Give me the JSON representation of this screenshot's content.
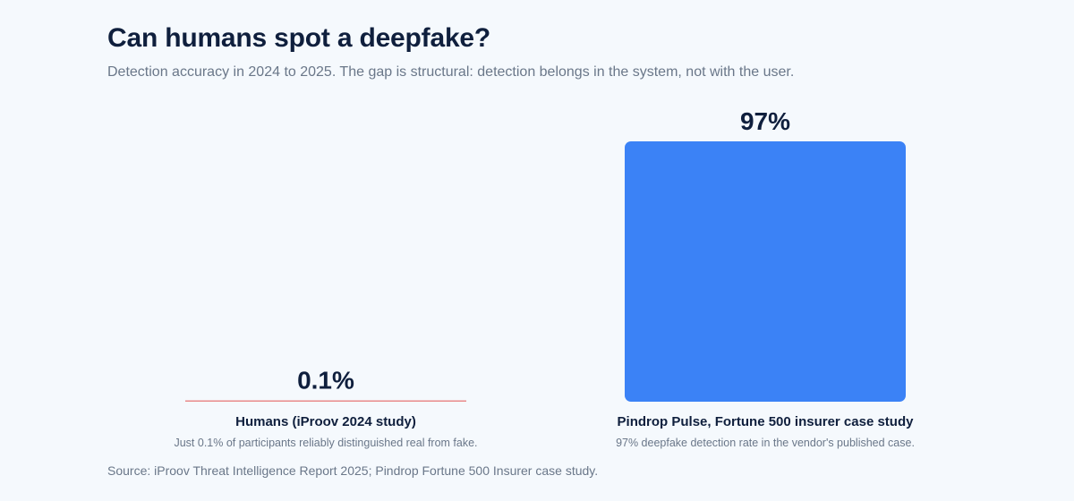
{
  "title": "Can humans spot a deepfake?",
  "subtitle": "Detection accuracy in 2024 to 2025. The gap is structural: detection belongs in the system, not with the user.",
  "source": "Source: iProov Threat Intelligence Report 2025; Pindrop Fortune 500 Insurer case study.",
  "colors": {
    "background": "#f5f9fd",
    "title": "#0f1f3d",
    "muted": "#6a7789",
    "human_bar": "#e98a8a",
    "system_bar": "#3b82f6"
  },
  "chart_data": {
    "type": "bar",
    "categories": [
      "Humans (iProov 2024 study)",
      "Pindrop Pulse, Fortune 500 insurer case study"
    ],
    "values": [
      0.1,
      97
    ],
    "value_labels": [
      "0.1%",
      "97%"
    ],
    "descriptions": [
      "Just 0.1% of participants reliably distinguished real from fake.",
      "97% deepfake detection rate in the vendor's published case."
    ],
    "bar_colors": [
      "#e98a8a",
      "#3b82f6"
    ],
    "ylim": [
      0,
      100
    ],
    "grid": false,
    "legend": "none"
  }
}
